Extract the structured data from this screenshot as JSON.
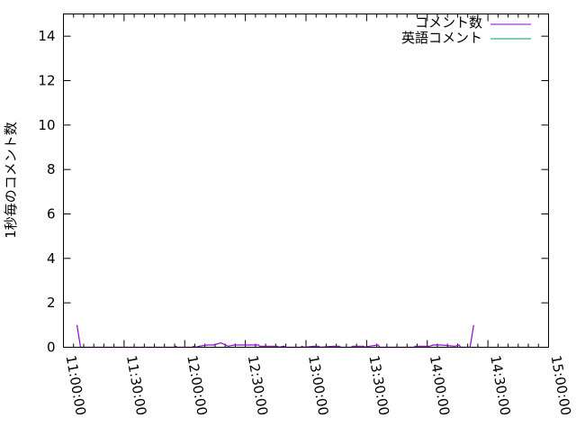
{
  "chart_data": {
    "type": "line",
    "title": "",
    "xlabel": "",
    "ylabel": "1秒毎のコメント数",
    "xlim": [
      "11:00:00",
      "15:00:00"
    ],
    "ylim": [
      0,
      15
    ],
    "x_ticks": [
      "11:00:00",
      "11:30:00",
      "12:00:00",
      "12:30:00",
      "13:00:00",
      "13:30:00",
      "14:00:00",
      "14:30:00",
      "15:00:00"
    ],
    "y_ticks": [
      0,
      2,
      4,
      6,
      8,
      10,
      12,
      14
    ],
    "grid": false,
    "legend": "top-right",
    "series": [
      {
        "name": "コメント数",
        "color": "#9400d3",
        "points": [
          [
            "11:06:41",
            1
          ],
          [
            "11:08:27",
            0
          ],
          [
            "11:55:00",
            0
          ],
          [
            "11:55:38",
            0.05
          ],
          [
            "11:56:10",
            0
          ],
          [
            "12:03:39",
            0
          ],
          [
            "12:04:30",
            0.05
          ],
          [
            "12:05:30",
            0
          ],
          [
            "12:07:12",
            0.05
          ],
          [
            "12:11:12",
            0.1
          ],
          [
            "12:14:19",
            0.1
          ],
          [
            "12:17:53",
            0.2
          ],
          [
            "12:21:27",
            0.05
          ],
          [
            "12:24:34",
            0.1
          ],
          [
            "12:36:35",
            0.1
          ],
          [
            "12:37:00",
            0.05
          ],
          [
            "12:45:55",
            0.05
          ],
          [
            "12:46:30",
            0
          ],
          [
            "12:49:02",
            0.05
          ],
          [
            "12:50:00",
            0
          ],
          [
            "12:57:29",
            0
          ],
          [
            "12:58:00",
            0.05
          ],
          [
            "12:59:00",
            0
          ],
          [
            "13:04:09",
            0.05
          ],
          [
            "13:06:23",
            0.05
          ],
          [
            "13:07:00",
            0
          ],
          [
            "13:13:31",
            0.05
          ],
          [
            "13:16:37",
            0.05
          ],
          [
            "13:17:00",
            0
          ],
          [
            "13:22:24",
            0
          ],
          [
            "13:23:00",
            0.05
          ],
          [
            "13:28:38",
            0.05
          ],
          [
            "13:29:00",
            0
          ],
          [
            "13:31:19",
            0.05
          ],
          [
            "13:35:44",
            0.1
          ],
          [
            "13:36:30",
            0
          ],
          [
            "13:53:34",
            0
          ],
          [
            "13:54:00",
            0.05
          ],
          [
            "14:01:08",
            0.05
          ],
          [
            "14:03:00",
            0.1
          ],
          [
            "14:06:55",
            0.1
          ],
          [
            "14:13:38",
            0.05
          ],
          [
            "14:15:50",
            0.1
          ],
          [
            "14:16:30",
            0
          ],
          [
            "14:18:58",
            0
          ],
          [
            "14:21:10",
            0
          ],
          [
            "14:22:57",
            1
          ]
        ]
      },
      {
        "name": "英語コメント",
        "color": "#009e73",
        "points": []
      }
    ]
  }
}
